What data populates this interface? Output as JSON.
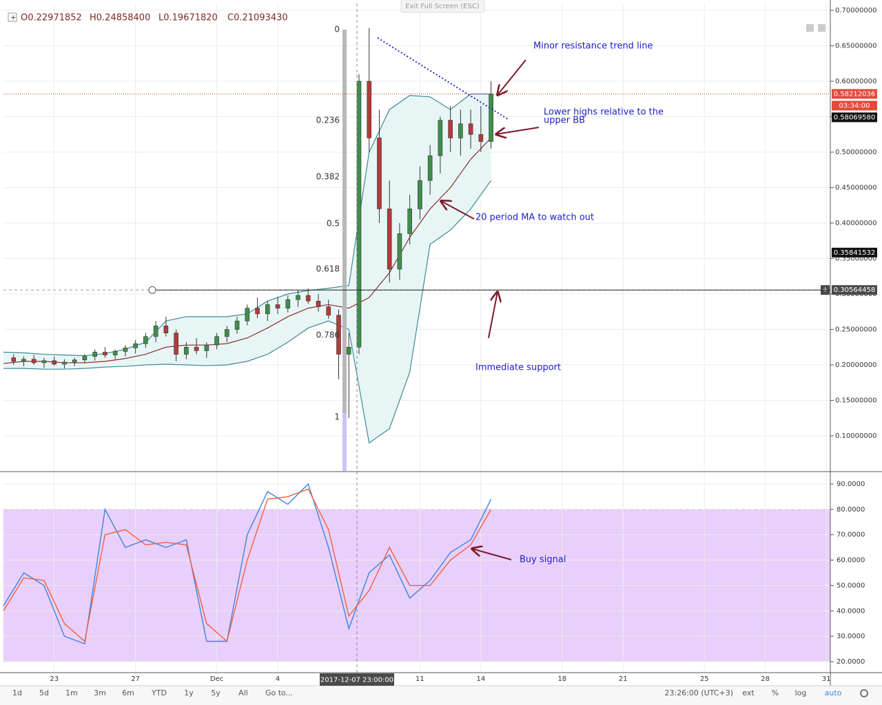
{
  "chart_data": [
    {
      "type": "candlestick",
      "x": [
        21,
        21.5,
        22,
        22.5,
        23,
        23.5,
        24,
        24.5,
        25,
        25.5,
        26,
        26.5,
        27,
        27.5,
        28,
        28.5,
        29,
        29.5,
        30,
        30.5,
        31,
        31.5,
        32,
        32.5,
        33,
        33.5,
        34,
        34.5,
        35,
        35.5,
        36,
        36.5,
        37,
        37.5,
        38,
        38.5,
        39,
        39.5,
        40,
        40.5,
        41,
        41.5,
        42,
        42.5,
        43,
        43.5,
        44,
        44.5
      ],
      "open": [
        0.21,
        0.205,
        0.208,
        0.203,
        0.206,
        0.201,
        0.204,
        0.207,
        0.212,
        0.218,
        0.214,
        0.219,
        0.224,
        0.23,
        0.24,
        0.255,
        0.245,
        0.215,
        0.225,
        0.22,
        0.228,
        0.24,
        0.25,
        0.262,
        0.28,
        0.272,
        0.285,
        0.28,
        0.292,
        0.298,
        0.29,
        0.282,
        0.27,
        0.215,
        0.225,
        0.6,
        0.52,
        0.42,
        0.335,
        0.385,
        0.42,
        0.46,
        0.495,
        0.545,
        0.52,
        0.54,
        0.525,
        0.515
      ],
      "high": [
        0.215,
        0.212,
        0.214,
        0.21,
        0.212,
        0.208,
        0.21,
        0.215,
        0.222,
        0.225,
        0.222,
        0.228,
        0.235,
        0.245,
        0.262,
        0.268,
        0.25,
        0.232,
        0.238,
        0.232,
        0.245,
        0.255,
        0.268,
        0.285,
        0.295,
        0.29,
        0.296,
        0.298,
        0.305,
        0.308,
        0.3,
        0.292,
        0.278,
        0.245,
        0.61,
        0.675,
        0.56,
        0.46,
        0.4,
        0.44,
        0.48,
        0.51,
        0.55,
        0.565,
        0.56,
        0.56,
        0.565,
        0.6
      ],
      "low": [
        0.2,
        0.198,
        0.2,
        0.196,
        0.199,
        0.195,
        0.198,
        0.202,
        0.206,
        0.21,
        0.208,
        0.212,
        0.216,
        0.224,
        0.232,
        0.24,
        0.205,
        0.208,
        0.215,
        0.21,
        0.222,
        0.232,
        0.244,
        0.256,
        0.266,
        0.262,
        0.272,
        0.274,
        0.282,
        0.286,
        0.275,
        0.265,
        0.18,
        0.125,
        0.215,
        0.5,
        0.4,
        0.316,
        0.32,
        0.37,
        0.405,
        0.44,
        0.47,
        0.5,
        0.495,
        0.505,
        0.5,
        0.505
      ],
      "close": [
        0.205,
        0.208,
        0.203,
        0.206,
        0.201,
        0.204,
        0.207,
        0.212,
        0.218,
        0.214,
        0.219,
        0.224,
        0.23,
        0.24,
        0.255,
        0.245,
        0.215,
        0.225,
        0.22,
        0.228,
        0.24,
        0.25,
        0.262,
        0.28,
        0.272,
        0.285,
        0.28,
        0.292,
        0.298,
        0.29,
        0.282,
        0.27,
        0.215,
        0.225,
        0.6,
        0.52,
        0.42,
        0.335,
        0.385,
        0.42,
        0.46,
        0.495,
        0.545,
        0.52,
        0.54,
        0.525,
        0.515,
        0.582
      ],
      "up_color": "#3f8f4a",
      "down_color": "#b53a3a",
      "line_x": [
        20.5,
        21.5,
        22.5,
        23.5,
        24.5,
        25.5,
        26.5,
        27.5,
        28.5,
        29.5,
        30.5,
        31.5,
        32.5,
        33.5,
        34.5,
        35.5,
        36.5,
        37.5,
        38.5,
        39.5,
        40.5,
        41.5,
        42.5,
        43.5,
        44.5
      ],
      "bb_upper": [
        0.218,
        0.217,
        0.215,
        0.214,
        0.213,
        0.216,
        0.222,
        0.232,
        0.262,
        0.268,
        0.268,
        0.268,
        0.272,
        0.29,
        0.3,
        0.305,
        0.308,
        0.312,
        0.5,
        0.56,
        0.58,
        0.578,
        0.56,
        0.582,
        0.582
      ],
      "bb_lower": [
        0.195,
        0.195,
        0.194,
        0.194,
        0.195,
        0.197,
        0.198,
        0.2,
        0.201,
        0.2,
        0.199,
        0.2,
        0.205,
        0.215,
        0.232,
        0.252,
        0.262,
        0.25,
        0.09,
        0.11,
        0.19,
        0.37,
        0.39,
        0.42,
        0.46
      ],
      "ma": [
        0.202,
        0.205,
        0.205,
        0.203,
        0.203,
        0.205,
        0.209,
        0.215,
        0.225,
        0.228,
        0.228,
        0.23,
        0.238,
        0.252,
        0.268,
        0.28,
        0.285,
        0.28,
        0.295,
        0.33,
        0.38,
        0.42,
        0.45,
        0.49,
        0.52
      ],
      "bb_color": "#3a8a96",
      "bb_fill": "#e8f5f5",
      "ma_color": "#8b2e2e",
      "xlim": [
        20.5,
        61.2
      ],
      "xticks": [
        23,
        27,
        {
          "value": 31,
          "label": "Dec"
        },
        {
          "value": 34,
          "label": "4"
        },
        {
          "value": 41,
          "label": "11"
        },
        {
          "value": 44,
          "label": "14"
        },
        {
          "value": 48,
          "label": "18"
        },
        {
          "value": 51,
          "label": "21"
        },
        {
          "value": 55,
          "label": "25"
        },
        {
          "value": 58,
          "label": "28"
        },
        {
          "value": 61,
          "label": "31"
        }
      ],
      "ylim": [
        0.0505,
        0.7097
      ],
      "yticks": [
        {
          "value": 0.1,
          "label": "0.10000000"
        },
        {
          "value": 0.15,
          "label": "0.15000000"
        },
        {
          "value": 0.2,
          "label": "0.20000000"
        },
        {
          "value": 0.25,
          "label": "0.25000000"
        },
        {
          "value": 0.3,
          "label": "0.30000000"
        },
        {
          "value": 0.35,
          "label": "0.35000000"
        },
        {
          "value": 0.4,
          "label": "0.40000000"
        },
        {
          "value": 0.45,
          "label": "0.45000000"
        },
        {
          "value": 0.5,
          "label": "0.50000000"
        },
        {
          "value": 0.55,
          "label": "0.55000000"
        },
        {
          "value": 0.6,
          "label": "0.60000000"
        },
        {
          "value": 0.65,
          "label": "0.65000000"
        },
        {
          "value": 0.7,
          "label": "0.70000000"
        }
      ],
      "grid": true
    },
    {
      "type": "line",
      "x": [
        20.5,
        21.5,
        22.5,
        23.5,
        24.5,
        25.5,
        26.5,
        27.5,
        28.5,
        29.5,
        30.5,
        31.5,
        32.5,
        33.5,
        34.5,
        35.5,
        36.5,
        37.5,
        38.5,
        39.5,
        40.5,
        41.5,
        42.5,
        43.5,
        44.5
      ],
      "series": [
        {
          "color": "#3d85e0",
          "values": [
            42,
            55,
            50,
            30,
            27,
            80,
            65,
            68,
            65,
            68,
            28,
            28,
            70,
            87,
            82,
            90,
            65,
            33,
            55,
            62,
            45,
            52,
            63,
            68,
            84
          ]
        },
        {
          "color": "#f0603e",
          "values": [
            40,
            53,
            52,
            35,
            28,
            70,
            72,
            66,
            67,
            66,
            35,
            28,
            60,
            84,
            85,
            88,
            72,
            38,
            48,
            65,
            50,
            50,
            60,
            66,
            80
          ]
        }
      ],
      "band": [
        20,
        80
      ],
      "band_color": "#e9cffb",
      "ylim": [
        16.2,
        94.6
      ],
      "yticks": [
        {
          "value": 20,
          "label": "20.0000"
        },
        {
          "value": 30,
          "label": "30.0000"
        },
        {
          "value": 40,
          "label": "40.0000"
        },
        {
          "value": 50,
          "label": "50.0000"
        },
        {
          "value": 60,
          "label": "60.0000"
        },
        {
          "value": 70,
          "label": "70.0000"
        },
        {
          "value": 80,
          "label": "80.0000"
        },
        {
          "value": 90,
          "label": "90.0000"
        }
      ]
    }
  ],
  "header": {
    "ohlc": [
      "O0.22971852",
      "H0.24858400",
      "L0.19671820",
      "C0.21093430"
    ]
  },
  "exit_button": "Exit Full Screen (ESC)",
  "fib_levels": [
    0,
    0.236,
    0.382,
    0.5,
    0.618,
    0.786,
    1
  ],
  "annotations": [
    "Minor resistance trend line",
    [
      "Lower highs relative to the",
      "upper BB"
    ],
    "20 period MA to watch out",
    "Immediate support",
    "Buy signal"
  ],
  "badges": [
    {
      "value": 0.58212036,
      "label": "0.58212036"
    },
    {
      "value": 0.5806958,
      "label": "0.58069580"
    },
    {
      "value": 0.35841532,
      "label": "0.35841532"
    },
    {
      "value": 0.30564458,
      "label": "0.30564458"
    }
  ],
  "countdown": "03:34:00",
  "crosshair_date": "2017-12-07 23:00:00",
  "toolbar": {
    "ranges": [
      "1d",
      "5d",
      "1m",
      "3m",
      "6m",
      "YTD",
      "1y",
      "5y",
      "All",
      "Go to..."
    ],
    "time": "23:26:00 (UTC+3)",
    "options": [
      "ext",
      "%",
      "log",
      "auto"
    ]
  }
}
